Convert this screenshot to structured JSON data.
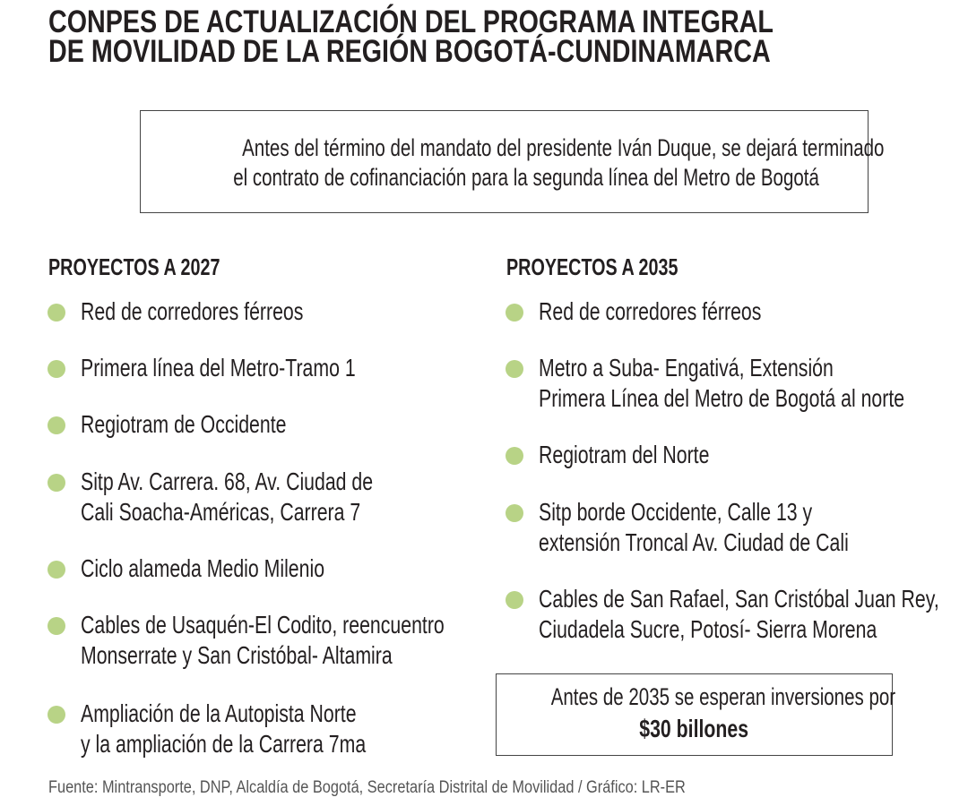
{
  "title": [
    "CONPES DE ACTUALIZACIÓN DEL PROGRAMA INTEGRAL",
    "DE MOVILIDAD DE LA REGIÓN BOGOTÁ-CUNDINAMARCA"
  ],
  "note": [
    "Antes del término del mandato del presidente Iván Duque, se dejará terminado",
    "el contrato de cofinanciación para la segunda línea del Metro de Bogotá"
  ],
  "colors": {
    "bullet": "#b8d386"
  },
  "left": {
    "heading": "PROYECTOS A 2027",
    "items": [
      [
        "Red de corredores férreos"
      ],
      [
        "Primera línea del Metro-Tramo 1"
      ],
      [
        "Regiotram de Occidente"
      ],
      [
        "Sitp Av. Carrera. 68, Av. Ciudad de",
        "Cali Soacha-Américas, Carrera 7"
      ],
      [
        "Ciclo alameda Medio Milenio"
      ],
      [
        "Cables de Usaquén-El Codito, reencuentro",
        "Monserrate y San Cristóbal- Altamira"
      ],
      [
        "Ampliación de la Autopista Norte",
        "y la ampliación de la Carrera 7ma"
      ]
    ]
  },
  "right": {
    "heading": "PROYECTOS A 2035",
    "items": [
      [
        "Red de corredores férreos"
      ],
      [
        "Metro a Suba- Engativá, Extensión",
        "Primera Línea del Metro de Bogotá al norte"
      ],
      [
        "Regiotram del Norte"
      ],
      [
        "Sitp borde Occidente, Calle 13 y",
        "extensión Troncal Av. Ciudad de Cali"
      ],
      [
        "Cables de San Rafael, San Cristóbal Juan Rey,",
        "Ciudadela Sucre, Potosí- Sierra Morena"
      ]
    ]
  },
  "investment": {
    "text": "Antes de 2035 se esperan inversiones por",
    "amount": "$30 billones"
  },
  "footer": "Fuente: Mintransporte, DNP, Alcaldía de Bogotá, Secretaría Distrital de Movilidad / Gráfico: LR-ER"
}
